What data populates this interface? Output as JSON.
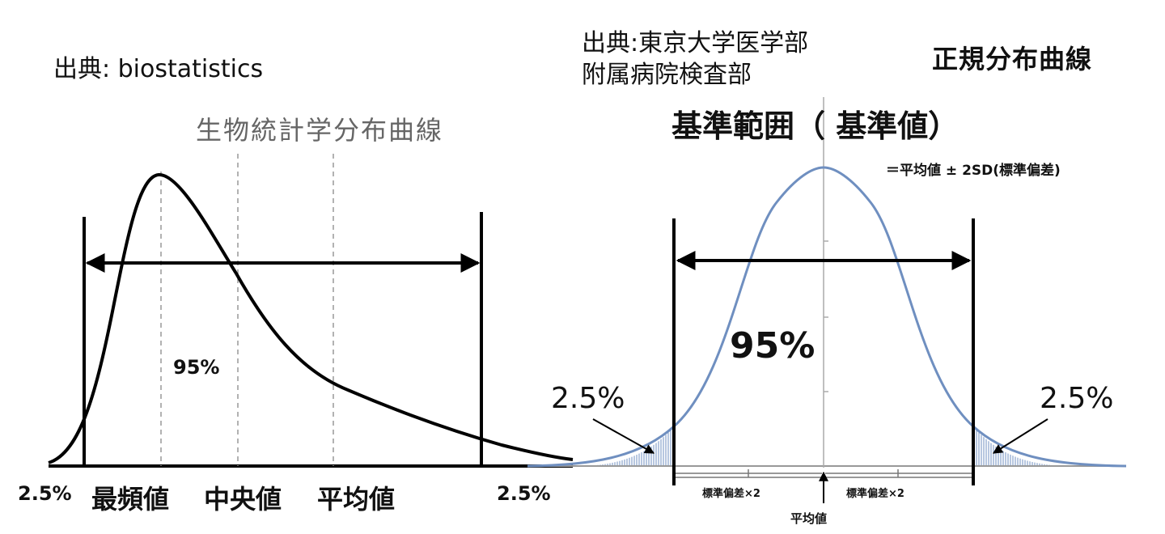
{
  "left_panel": {
    "source": "出典: biostatistics",
    "title": "生物統計学分布曲線",
    "percent_inside": "95%",
    "tail_left": "2.5%",
    "tail_right": "2.5%",
    "labels": {
      "mode": "最頻値",
      "median": "中央値",
      "mean": "平均値"
    }
  },
  "right_panel": {
    "source_line1": "出典:東京大学医学部",
    "source_line2": "附属病院検査部",
    "title": "正規分布曲線",
    "reference_range": "基準範囲（ 基準値）",
    "definition": "＝平均値 ± 2SD(標準偏差)",
    "percent_inside": "95%",
    "tail_left": "2.5%",
    "tail_right": "2.5%",
    "sd_left": "標準偏差×2",
    "sd_right": "標準偏差×2",
    "mean_label": "平均値"
  },
  "colors": {
    "skewed_curve": "#000000",
    "normal_curve": "#6f8fc0",
    "tail_fill": "#a9bedf",
    "guide": "#999999"
  }
}
